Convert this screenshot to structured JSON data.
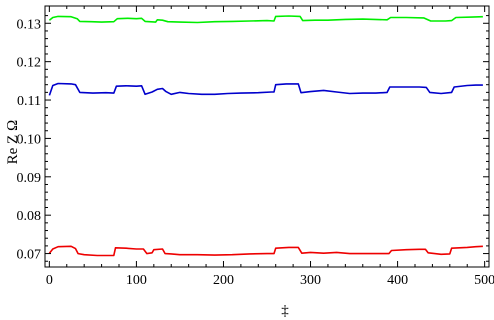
{
  "chart_data": {
    "type": "line",
    "title": "",
    "xlabel": "‡",
    "ylabel": "Re Z Ω",
    "xlim": [
      -5,
      505
    ],
    "ylim": [
      0.0665,
      0.1345
    ],
    "x_ticks": [
      0,
      100,
      200,
      300,
      400,
      500
    ],
    "y_ticks": [
      0.07,
      0.08,
      0.09,
      0.1,
      0.11,
      0.12,
      0.13
    ],
    "x_tick_labels": [
      "0",
      "100",
      "200",
      "300",
      "400",
      "500"
    ],
    "y_tick_labels": [
      "0.07",
      "0.08",
      "0.09",
      "0.10",
      "0.11",
      "0.12",
      "0.13"
    ],
    "grid": false,
    "series": [
      {
        "color": "#00ee00",
        "points": [
          [
            0,
            0.1308
          ],
          [
            4,
            0.1315
          ],
          [
            10,
            0.1318
          ],
          [
            25,
            0.1317
          ],
          [
            32,
            0.1312
          ],
          [
            35,
            0.1305
          ],
          [
            48,
            0.1304
          ],
          [
            60,
            0.1303
          ],
          [
            74,
            0.1304
          ],
          [
            78,
            0.1312
          ],
          [
            90,
            0.1313
          ],
          [
            100,
            0.1312
          ],
          [
            106,
            0.1313
          ],
          [
            110,
            0.1305
          ],
          [
            122,
            0.1303
          ],
          [
            124,
            0.1309
          ],
          [
            130,
            0.1308
          ],
          [
            136,
            0.1304
          ],
          [
            150,
            0.1303
          ],
          [
            170,
            0.1302
          ],
          [
            190,
            0.1304
          ],
          [
            210,
            0.1305
          ],
          [
            230,
            0.1306
          ],
          [
            250,
            0.1307
          ],
          [
            258,
            0.1306
          ],
          [
            260,
            0.1318
          ],
          [
            275,
            0.1319
          ],
          [
            288,
            0.1318
          ],
          [
            291,
            0.1307
          ],
          [
            305,
            0.1308
          ],
          [
            320,
            0.1308
          ],
          [
            340,
            0.131
          ],
          [
            360,
            0.1311
          ],
          [
            388,
            0.1309
          ],
          [
            392,
            0.1315
          ],
          [
            410,
            0.1315
          ],
          [
            430,
            0.1314
          ],
          [
            438,
            0.1306
          ],
          [
            455,
            0.1306
          ],
          [
            462,
            0.1307
          ],
          [
            467,
            0.1315
          ],
          [
            485,
            0.1316
          ],
          [
            498,
            0.1317
          ]
        ]
      },
      {
        "color": "#0000cc",
        "points": [
          [
            0,
            0.1112
          ],
          [
            4,
            0.1138
          ],
          [
            10,
            0.1143
          ],
          [
            25,
            0.1142
          ],
          [
            30,
            0.114
          ],
          [
            35,
            0.112
          ],
          [
            50,
            0.1118
          ],
          [
            65,
            0.1119
          ],
          [
            74,
            0.1118
          ],
          [
            77,
            0.1136
          ],
          [
            88,
            0.1137
          ],
          [
            100,
            0.1136
          ],
          [
            106,
            0.1137
          ],
          [
            110,
            0.1115
          ],
          [
            118,
            0.1121
          ],
          [
            124,
            0.1128
          ],
          [
            130,
            0.113
          ],
          [
            134,
            0.1122
          ],
          [
            140,
            0.1115
          ],
          [
            150,
            0.112
          ],
          [
            160,
            0.1117
          ],
          [
            175,
            0.1115
          ],
          [
            190,
            0.1115
          ],
          [
            205,
            0.1117
          ],
          [
            220,
            0.1118
          ],
          [
            240,
            0.1119
          ],
          [
            255,
            0.1121
          ],
          [
            258,
            0.1121
          ],
          [
            260,
            0.114
          ],
          [
            272,
            0.1142
          ],
          [
            286,
            0.1142
          ],
          [
            289,
            0.1119
          ],
          [
            300,
            0.1122
          ],
          [
            315,
            0.1125
          ],
          [
            330,
            0.1121
          ],
          [
            345,
            0.1117
          ],
          [
            360,
            0.1118
          ],
          [
            375,
            0.1118
          ],
          [
            388,
            0.112
          ],
          [
            391,
            0.1134
          ],
          [
            405,
            0.1134
          ],
          [
            425,
            0.1134
          ],
          [
            433,
            0.1133
          ],
          [
            437,
            0.112
          ],
          [
            450,
            0.1117
          ],
          [
            462,
            0.112
          ],
          [
            465,
            0.1134
          ],
          [
            480,
            0.1138
          ],
          [
            490,
            0.1139
          ],
          [
            498,
            0.1139
          ]
        ]
      },
      {
        "color": "#ee0000",
        "points": [
          [
            0,
            0.0701
          ],
          [
            4,
            0.0712
          ],
          [
            10,
            0.0718
          ],
          [
            25,
            0.0719
          ],
          [
            30,
            0.0713
          ],
          [
            33,
            0.07
          ],
          [
            40,
            0.0697
          ],
          [
            55,
            0.0695
          ],
          [
            74,
            0.0695
          ],
          [
            76,
            0.0715
          ],
          [
            88,
            0.0714
          ],
          [
            100,
            0.0712
          ],
          [
            108,
            0.0712
          ],
          [
            112,
            0.07
          ],
          [
            118,
            0.0702
          ],
          [
            120,
            0.071
          ],
          [
            130,
            0.0712
          ],
          [
            133,
            0.07
          ],
          [
            140,
            0.0699
          ],
          [
            150,
            0.0697
          ],
          [
            170,
            0.0697
          ],
          [
            190,
            0.0696
          ],
          [
            210,
            0.0697
          ],
          [
            230,
            0.0699
          ],
          [
            250,
            0.07
          ],
          [
            258,
            0.07
          ],
          [
            260,
            0.0714
          ],
          [
            275,
            0.0716
          ],
          [
            286,
            0.0716
          ],
          [
            290,
            0.0701
          ],
          [
            300,
            0.0703
          ],
          [
            315,
            0.0701
          ],
          [
            330,
            0.0703
          ],
          [
            345,
            0.07
          ],
          [
            360,
            0.07
          ],
          [
            378,
            0.07
          ],
          [
            390,
            0.07
          ],
          [
            393,
            0.0708
          ],
          [
            410,
            0.071
          ],
          [
            425,
            0.0711
          ],
          [
            432,
            0.0711
          ],
          [
            435,
            0.0702
          ],
          [
            450,
            0.0698
          ],
          [
            460,
            0.0699
          ],
          [
            462,
            0.0714
          ],
          [
            480,
            0.0716
          ],
          [
            490,
            0.0718
          ],
          [
            498,
            0.0719
          ]
        ]
      }
    ]
  }
}
